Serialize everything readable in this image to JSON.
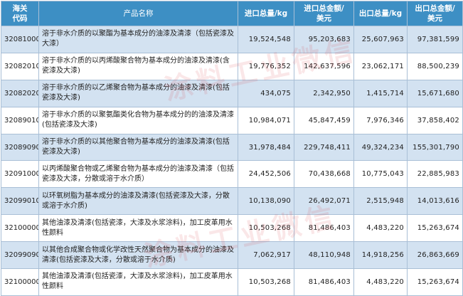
{
  "header": {
    "code": "海关\n代码",
    "name": "产品名称",
    "import_qty": "进口总量/kg",
    "import_value": "进口总金额/\n美元",
    "export_qty": "出口总量/kg",
    "export_value": "出口总金额/\n美元"
  },
  "rows": [
    {
      "code": "32081000",
      "name": "溶于非水介质的以聚酯为基本成分的油漆及清漆（包括瓷漆及大漆）",
      "import_qty": "19,524,548",
      "import_value": "95,203,683",
      "export_qty": "25,607,963",
      "export_value": "97,381,599"
    },
    {
      "code": "32082010",
      "name": "溶于非水介质的以丙烯酸聚合物为基本成分的油漆及清漆(含瓷漆及大漆)",
      "import_qty": "19,776,352",
      "import_value": "142,637,596",
      "export_qty": "23,062,171",
      "export_value": "88,500,239"
    },
    {
      "code": "32082020",
      "name": "溶于非水介质的以乙烯聚合物为基本成分的油漆及清漆(包括瓷漆及大漆)",
      "import_qty": "434,075",
      "import_value": "2,342,950",
      "export_qty": "1,415,714",
      "export_value": "15,671,680"
    },
    {
      "code": "32089010",
      "name": "溶于非水介质的以聚氨酯类化合物为基本成分的的油漆及清漆(包括瓷漆及大漆)",
      "import_qty": "10,984,071",
      "import_value": "45,847,459",
      "export_qty": "7,976,346",
      "export_value": "37,858,402"
    },
    {
      "code": "32089090",
      "name": "溶于非水介质的以其他聚合物为基本成分的油漆及清漆(包括瓷漆及大漆)",
      "import_qty": "31,978,484",
      "import_value": "229,748,411",
      "export_qty": "49,324,234",
      "export_value": "155,301,790"
    },
    {
      "code": "32091000",
      "name": "以丙烯酸聚合物或乙烯聚合物为基本成分的油漆及清漆（包括瓷漆及大漆，分散或溶于水介质）",
      "import_qty": "24,452,506",
      "import_value": "70,438,668",
      "export_qty": "10,775,043",
      "export_value": "22,885,983"
    },
    {
      "code": "32099010",
      "name": "以环氧树脂为基本成分的油漆及清漆(包括瓷漆及大漆，分散或溶于水介质)",
      "import_qty": "10,138,090",
      "import_value": "26,492,071",
      "export_qty": "2,515,948",
      "export_value": "14,013,616"
    },
    {
      "code": "32100000",
      "name": "其他油漆及清漆(包括瓷漆，大漆及水浆涂料)，加工皮革用水性颜料",
      "import_qty": "10,503,268",
      "import_value": "81,486,403",
      "export_qty": "4,483,220",
      "export_value": "15,263,674"
    },
    {
      "code": "32099090",
      "name": "以其他合成聚合物或化学改性天然聚合物为基本成分的油漆及清漆(包括瓷漆及大漆，分散或溶于水介质)",
      "import_qty": "7,062,917",
      "import_value": "48,110,948",
      "export_qty": "14,918,256",
      "export_value": "26,863,669"
    },
    {
      "code": "32100000",
      "name": "其他油漆及清漆(包括瓷漆，大漆及水浆涂料)，加工皮革用水性颜料",
      "import_qty": "10,503,268",
      "import_value": "81,486,403",
      "export_qty": "4,483,220",
      "export_value": "15,263,674"
    }
  ],
  "watermark": "涂料工业微信",
  "colors": {
    "header_bg": "#3d8fc4",
    "stripe_bg": "#d3e2f1",
    "watermark": "#dc4650"
  }
}
